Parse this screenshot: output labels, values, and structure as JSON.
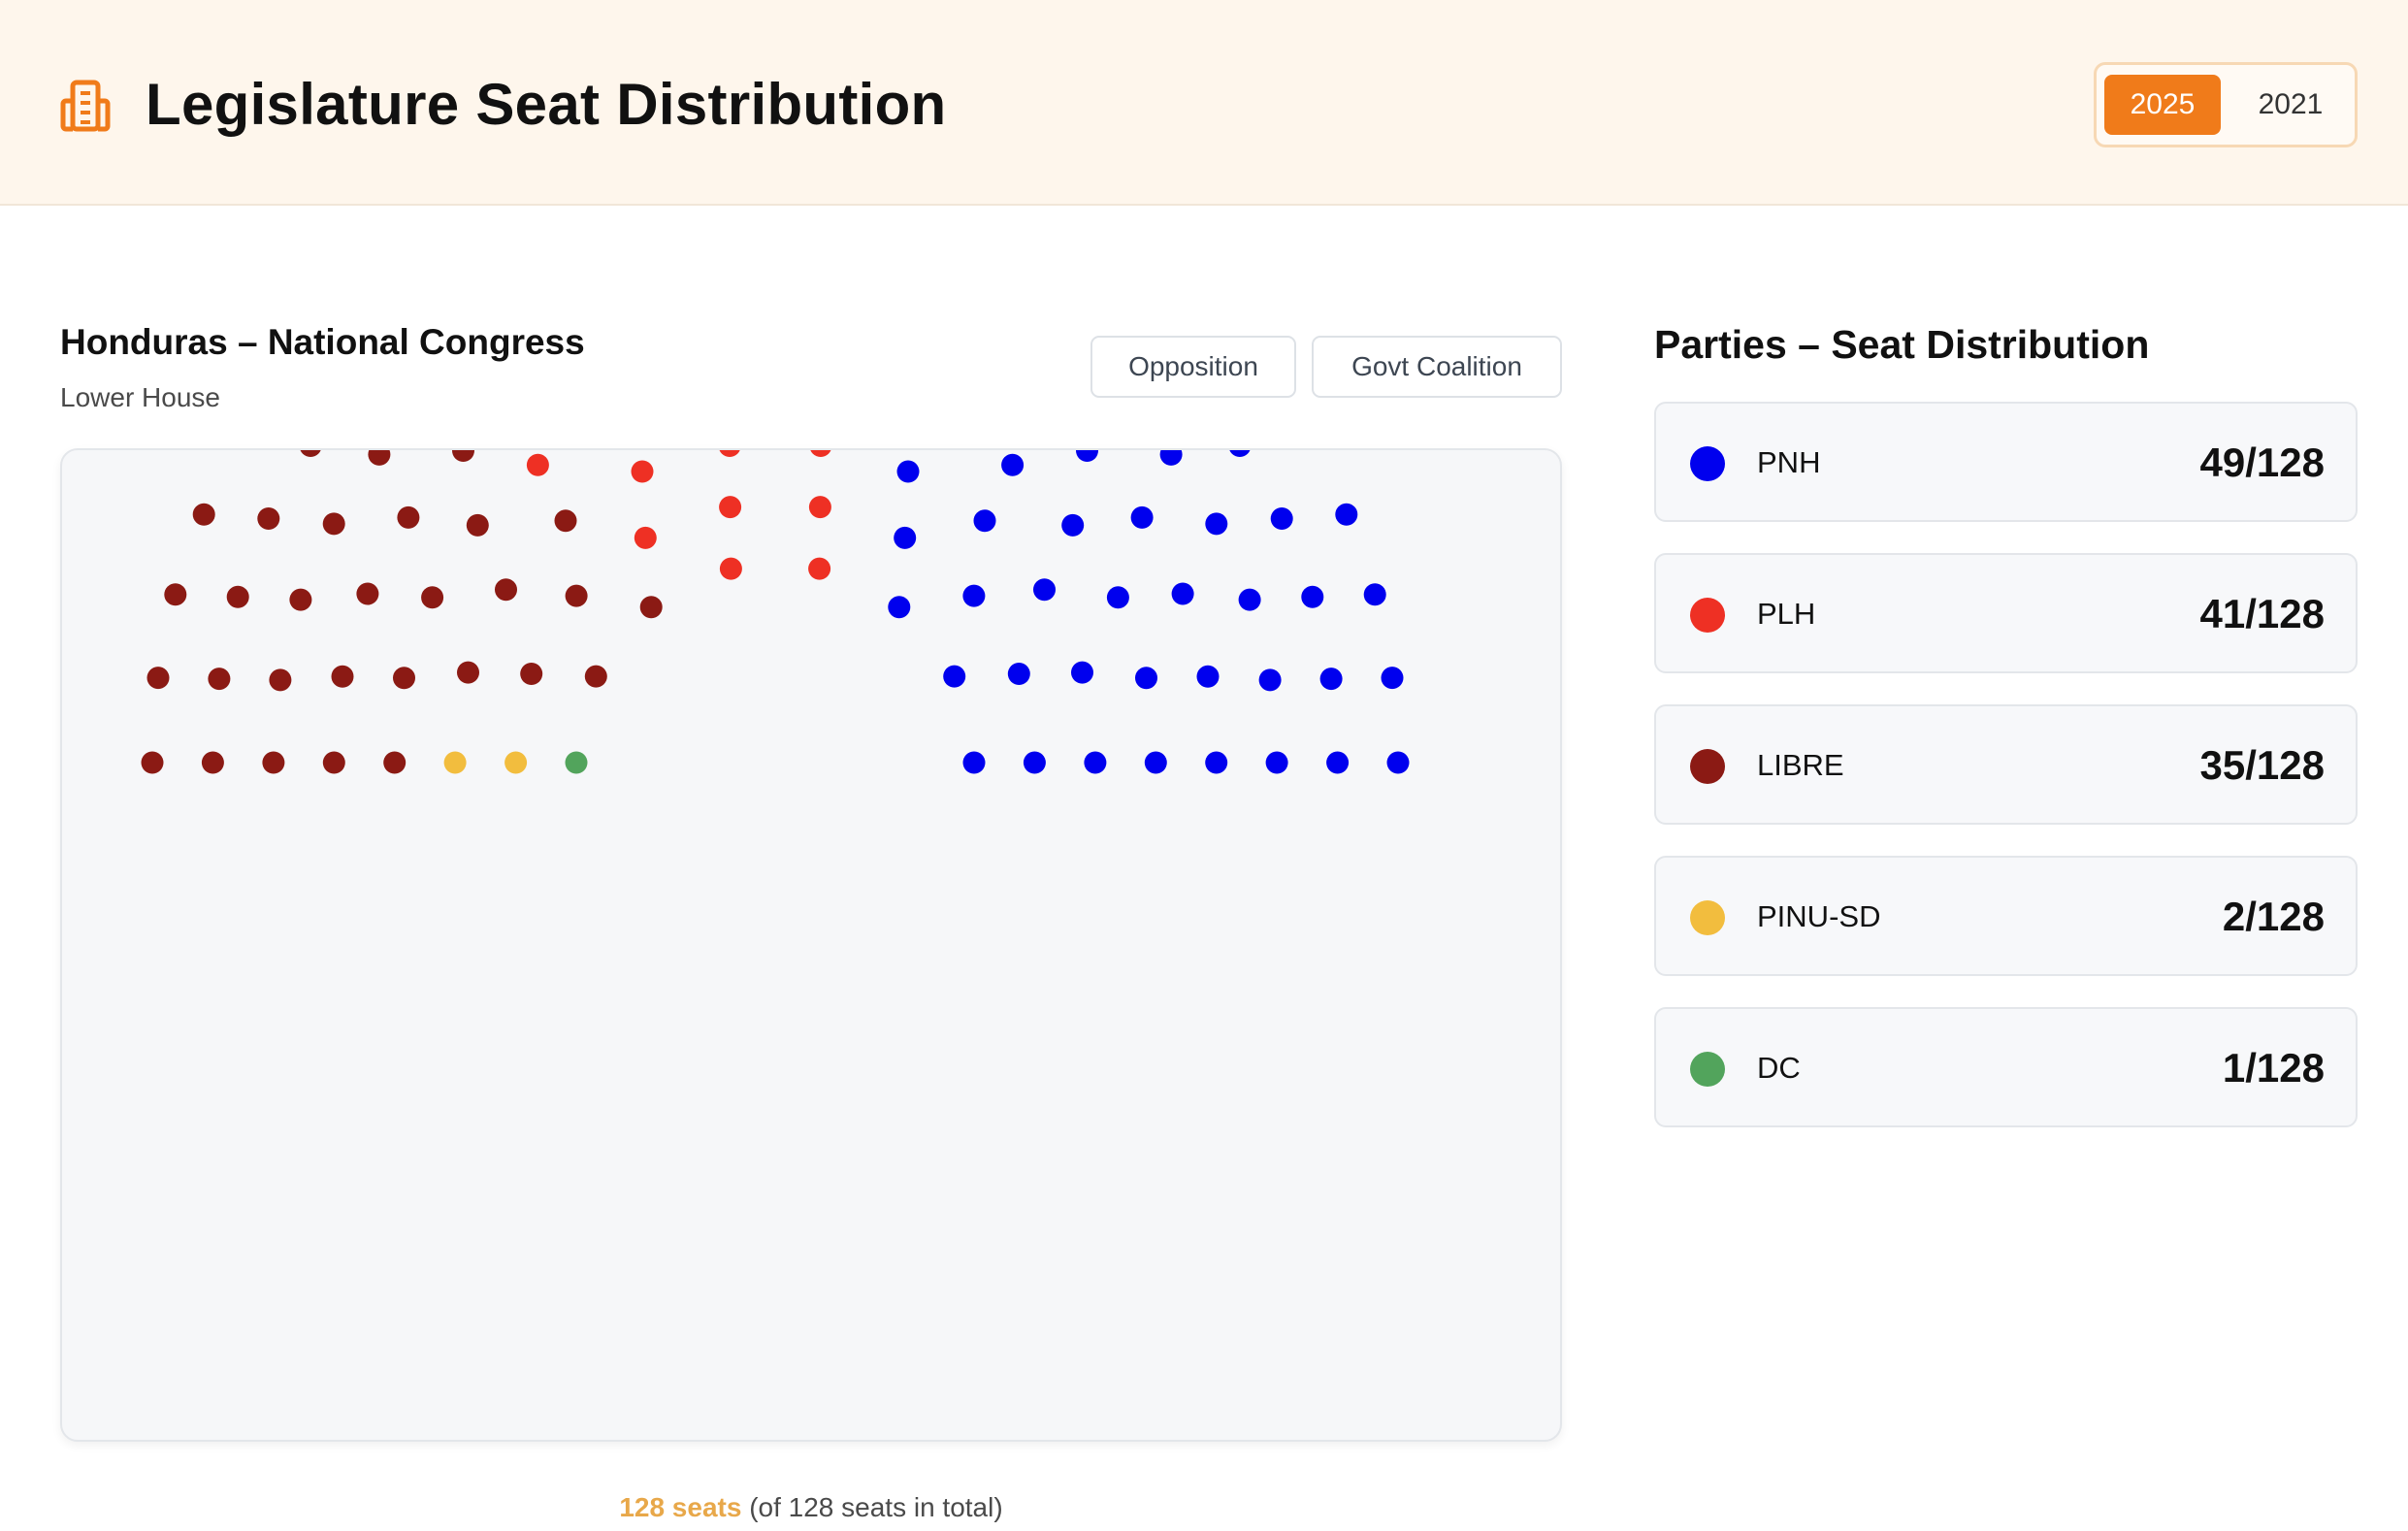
{
  "header": {
    "title": "Legislature Seat Distribution",
    "logo_icon": "building-icon",
    "accent_color": "#f07b1a",
    "years": [
      "2025",
      "2021"
    ],
    "active_year": "2025"
  },
  "chamber": {
    "title": "Honduras – National Congress",
    "subtitle": "Lower House",
    "filters": {
      "opposition": "Opposition",
      "coalition": "Govt Coalition"
    }
  },
  "parties_panel": {
    "title": "Parties – Seat Distribution",
    "items": [
      {
        "name": "PNH",
        "seats": "49/128",
        "color": "#0000ee"
      },
      {
        "name": "PLH",
        "seats": "41/128",
        "color": "#ee3024"
      },
      {
        "name": "LIBRE",
        "seats": "35/128",
        "color": "#8b1a14"
      },
      {
        "name": "PINU-SD",
        "seats": "2/128",
        "color": "#f2bd3e"
      },
      {
        "name": "DC",
        "seats": "1/128",
        "color": "#52a45c"
      }
    ]
  },
  "footer": {
    "seats_highlight": "128 seats",
    "seats_rest": "(of 128 seats in total)"
  },
  "chart_data": {
    "type": "parliament",
    "total_seats": 128,
    "order_left_to_right": [
      "DC",
      "PINU-SD",
      "LIBRE",
      "PLH",
      "PNH"
    ],
    "series": [
      {
        "name": "DC",
        "value": 1,
        "color": "#52a45c"
      },
      {
        "name": "PINU-SD",
        "value": 2,
        "color": "#f2bd3e"
      },
      {
        "name": "LIBRE",
        "value": 35,
        "color": "#8b1a14"
      },
      {
        "name": "PLH",
        "value": 41,
        "color": "#ee3024"
      },
      {
        "name": "PNH",
        "value": 49,
        "color": "#0000ee"
      }
    ]
  }
}
